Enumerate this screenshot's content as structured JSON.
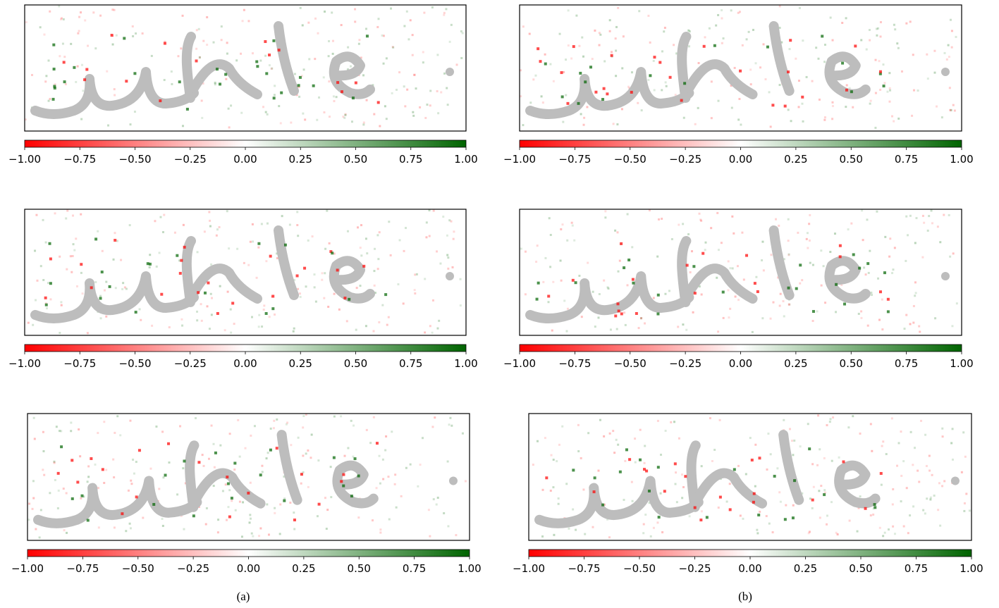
{
  "chart_data": [
    {
      "type": "colorbar",
      "xlim": [
        -1,
        1
      ],
      "colors": [
        "#ff0000",
        "#ffffff",
        "#006400"
      ],
      "xticks": [
        {
          "value": -1,
          "label": "−1.00"
        },
        {
          "value": -0.75,
          "label": "−0.75"
        },
        {
          "value": -0.5,
          "label": "−0.50"
        },
        {
          "value": -0.25,
          "label": "−0.25"
        },
        {
          "value": 0,
          "label": "0.00"
        },
        0.25,
        {
          "value": 0.5,
          "label": "0.50"
        },
        0.75,
        {
          "value": 1,
          "label": "1.00"
        }
      ]
    },
    {
      "type": "colorbar",
      "xlim": [
        -1,
        1
      ],
      "colors": [
        "#ff0000",
        "#ffffff",
        "#006400"
      ],
      "xticks": [
        {
          "value": -1,
          "label": "−1.00"
        },
        {
          "value": -0.75,
          "label": "−0.75"
        },
        {
          "value": -0.5,
          "label": "−0.50"
        },
        {
          "value": -0.25,
          "label": "−0.25"
        },
        {
          "value": 0,
          "label": "0.00"
        },
        0.25,
        {
          "value": 0.5,
          "label": "0.50"
        },
        0.75,
        {
          "value": 1,
          "label": "1.00"
        }
      ]
    },
    {
      "type": "colorbar",
      "xlim": [
        -1,
        1
      ],
      "colors": [
        "#ff0000",
        "#ffffff",
        "#006400"
      ],
      "xticks": [
        {
          "value": -1,
          "label": "−1.00"
        },
        {
          "value": -0.75,
          "label": "−0.75"
        },
        {
          "value": -0.5,
          "label": "−0.50"
        },
        {
          "value": -0.25,
          "label": "−0.25"
        },
        {
          "value": 0,
          "label": "0.00"
        },
        0.25,
        {
          "value": 0.5,
          "label": "0.50"
        },
        0.75,
        {
          "value": 1,
          "label": "1.00"
        }
      ]
    },
    {
      "type": "colorbar",
      "xlim": [
        -1,
        1
      ],
      "colors": [
        "#ff0000",
        "#ffffff",
        "#006400"
      ],
      "xticks": [
        {
          "value": -1,
          "label": "−1.00"
        },
        {
          "value": -0.75,
          "label": "−0.75"
        },
        {
          "value": -0.5,
          "label": "−0.50"
        },
        {
          "value": -0.25,
          "label": "−0.25"
        },
        {
          "value": 0,
          "label": "0.00"
        },
        0.25,
        {
          "value": 0.5,
          "label": "0.50"
        },
        0.75,
        {
          "value": 1,
          "label": "1.00"
        }
      ]
    },
    {
      "type": "colorbar",
      "xlim": [
        -1,
        1
      ],
      "colors": [
        "#ff0000",
        "#ffffff",
        "#006400"
      ],
      "xticks": [
        {
          "value": -1,
          "label": "−1.00"
        },
        {
          "value": -0.75,
          "label": "−0.75"
        },
        {
          "value": -0.5,
          "label": "−0.50"
        },
        {
          "value": -0.25,
          "label": "−0.25"
        },
        {
          "value": 0,
          "label": "0.00"
        },
        0.25,
        {
          "value": 0.5,
          "label": "0.50"
        },
        0.75,
        {
          "value": 1,
          "label": "1.00"
        }
      ]
    },
    {
      "type": "colorbar",
      "xlim": [
        -1,
        1
      ],
      "colors": [
        "#ff0000",
        "#ffffff",
        "#006400"
      ],
      "xticks": [
        {
          "value": -1,
          "label": "−1.00"
        },
        {
          "value": -0.75,
          "label": "−0.75"
        },
        {
          "value": -0.5,
          "label": "−0.50"
        },
        {
          "value": -0.25,
          "label": "−0.25"
        },
        {
          "value": 0,
          "label": "0.00"
        },
        0.25,
        {
          "value": 0.5,
          "label": "0.50"
        },
        0.75,
        {
          "value": 1,
          "label": "1.00"
        }
      ]
    }
  ],
  "captions": [
    "(a)",
    "(b)"
  ]
}
